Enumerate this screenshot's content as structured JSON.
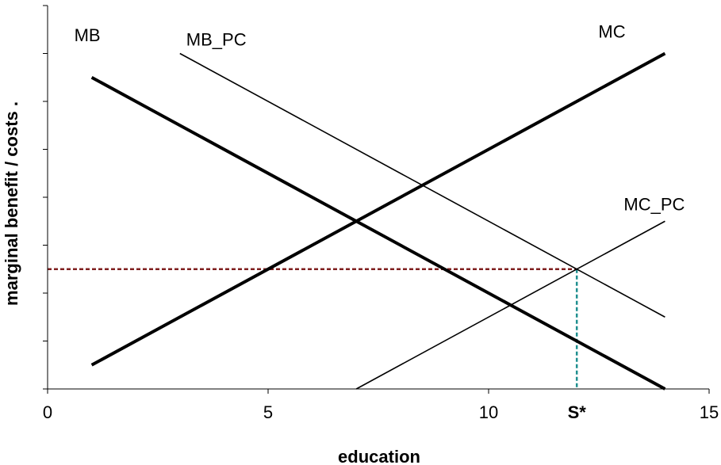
{
  "chart_data": {
    "type": "line",
    "title": "",
    "xlabel": "education",
    "ylabel": "marginal benefit / costs .",
    "xlim": [
      0,
      15
    ],
    "ylim": [
      0,
      8
    ],
    "xticks": [
      0,
      5,
      10,
      15
    ],
    "xtick_labels": [
      "0",
      "5",
      "10",
      "15"
    ],
    "ytick_count": 8,
    "grid": false,
    "legend": "none",
    "series": [
      {
        "name": "MB",
        "x": [
          1,
          14
        ],
        "y": [
          6.5,
          0
        ],
        "color": "#000000",
        "weight": "thick"
      },
      {
        "name": "MB_PC",
        "x": [
          3,
          14
        ],
        "y": [
          7.0,
          1.5
        ],
        "color": "#000000",
        "weight": "thin"
      },
      {
        "name": "MC",
        "x": [
          1,
          14
        ],
        "y": [
          0.5,
          7.0
        ],
        "color": "#000000",
        "weight": "thick"
      },
      {
        "name": "MC_PC",
        "x": [
          7,
          14
        ],
        "y": [
          0,
          3.5
        ],
        "color": "#000000",
        "weight": "thin"
      }
    ],
    "annotations": [
      {
        "label": "S*",
        "x": 12,
        "y": 2.5
      }
    ],
    "reference_lines": {
      "horizontal_y": 2.5,
      "horizontal_color": "#7f1f1f",
      "vertical_x": 12,
      "vertical_color": "#1f8f8f"
    }
  }
}
